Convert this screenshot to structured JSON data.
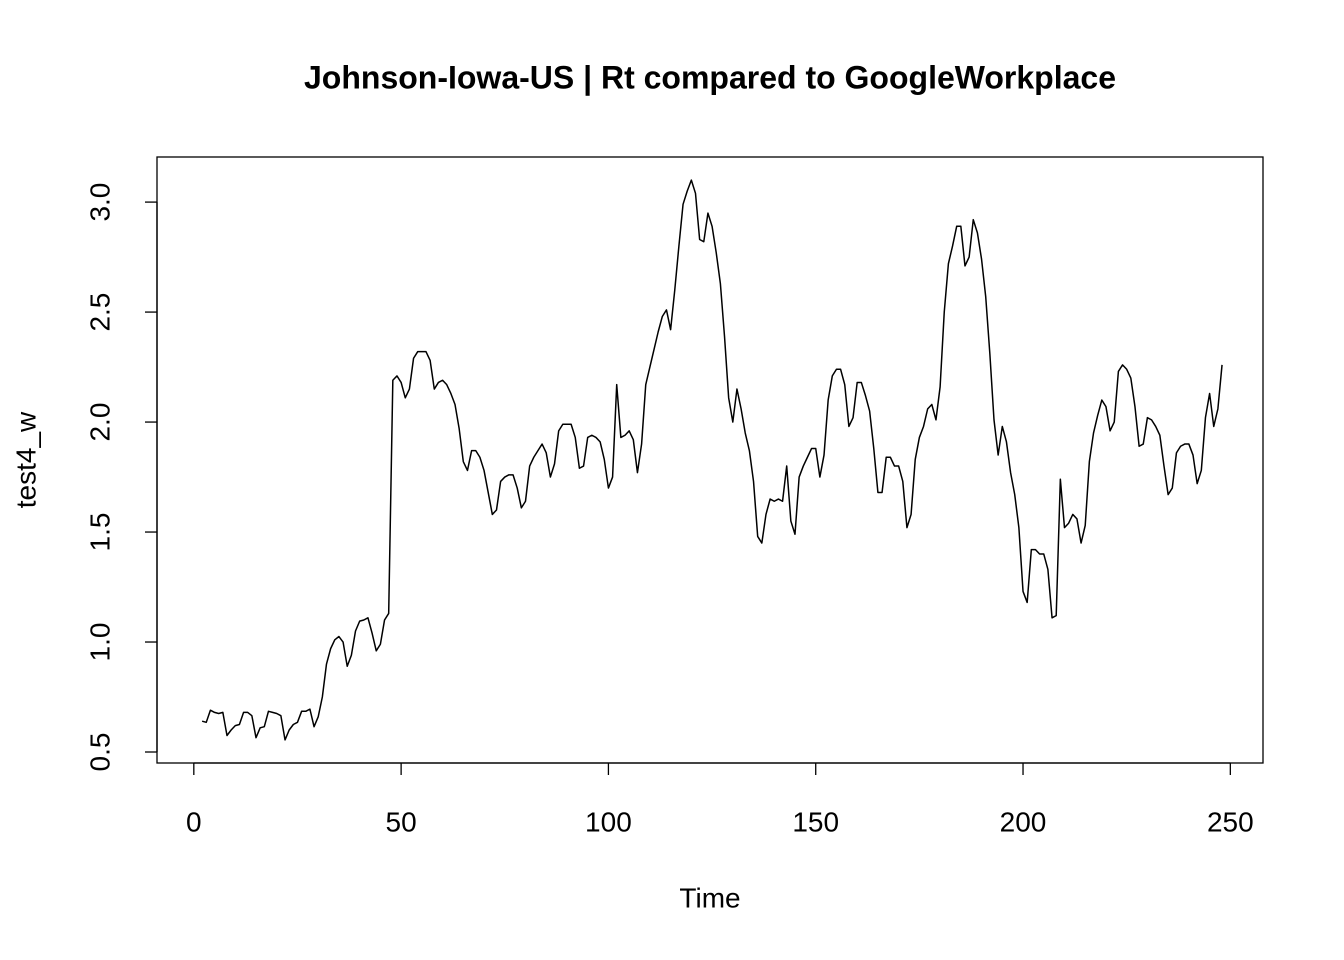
{
  "chart_data": {
    "type": "line",
    "title": "Johnson-Iowa-US | Rt compared to GoogleWorkplace",
    "xlabel": "Time",
    "ylabel": "test4_w",
    "color": "#000000",
    "x": [
      2,
      3,
      4,
      5,
      6,
      7,
      8,
      9,
      10,
      11,
      12,
      13,
      14,
      15,
      16,
      17,
      18,
      19,
      20,
      21,
      22,
      23,
      24,
      25,
      26,
      27,
      28,
      29,
      30,
      31,
      32,
      33,
      34,
      35,
      36,
      37,
      38,
      39,
      40,
      41,
      42,
      43,
      44,
      45,
      46,
      47,
      48,
      49,
      50,
      51,
      52,
      53,
      54,
      55,
      56,
      57,
      58,
      59,
      60,
      61,
      62,
      63,
      64,
      65,
      66,
      67,
      68,
      69,
      70,
      71,
      72,
      73,
      74,
      75,
      76,
      77,
      78,
      79,
      80,
      81,
      82,
      83,
      84,
      85,
      86,
      87,
      88,
      89,
      90,
      91,
      92,
      93,
      94,
      95,
      96,
      97,
      98,
      99,
      100,
      101,
      102,
      103,
      104,
      105,
      106,
      107,
      108,
      109,
      110,
      111,
      112,
      113,
      114,
      115,
      116,
      117,
      118,
      119,
      120,
      121,
      122,
      123,
      124,
      125,
      126,
      127,
      128,
      129,
      130,
      131,
      132,
      133,
      134,
      135,
      136,
      137,
      138,
      139,
      140,
      141,
      142,
      143,
      144,
      145,
      146,
      147,
      148,
      149,
      150,
      151,
      152,
      153,
      154,
      155,
      156,
      157,
      158,
      159,
      160,
      161,
      162,
      163,
      164,
      165,
      166,
      167,
      168,
      169,
      170,
      171,
      172,
      173,
      174,
      175,
      176,
      177,
      178,
      179,
      180,
      181,
      182,
      183,
      184,
      185,
      186,
      187,
      188,
      189,
      190,
      191,
      192,
      193,
      194,
      195,
      196,
      197,
      198,
      199,
      200,
      201,
      202,
      203,
      204,
      205,
      206,
      207,
      208,
      209,
      210,
      211,
      212,
      213,
      214,
      215,
      216,
      217,
      218,
      219,
      220,
      221,
      222,
      223,
      224,
      225,
      226,
      227,
      228,
      229,
      230,
      231,
      232,
      233,
      234,
      235,
      236,
      237,
      238,
      239,
      240,
      241,
      242,
      243,
      244,
      245,
      246,
      247,
      248
    ],
    "values": [
      0.64,
      0.635,
      0.69,
      0.68,
      0.675,
      0.68,
      0.575,
      0.6,
      0.62,
      0.625,
      0.68,
      0.68,
      0.665,
      0.565,
      0.61,
      0.615,
      0.685,
      0.68,
      0.675,
      0.665,
      0.555,
      0.6,
      0.625,
      0.635,
      0.685,
      0.685,
      0.695,
      0.615,
      0.66,
      0.75,
      0.9,
      0.97,
      1.01,
      1.025,
      1.0,
      0.89,
      0.94,
      1.05,
      1.095,
      1.1,
      1.11,
      1.04,
      0.96,
      0.99,
      1.1,
      1.13,
      2.19,
      2.21,
      2.18,
      2.11,
      2.15,
      2.29,
      2.32,
      2.32,
      2.32,
      2.28,
      2.15,
      2.18,
      2.19,
      2.17,
      2.13,
      2.08,
      1.97,
      1.82,
      1.78,
      1.87,
      1.87,
      1.84,
      1.78,
      1.68,
      1.58,
      1.6,
      1.73,
      1.75,
      1.76,
      1.76,
      1.7,
      1.61,
      1.64,
      1.8,
      1.84,
      1.87,
      1.9,
      1.86,
      1.75,
      1.81,
      1.96,
      1.99,
      1.99,
      1.99,
      1.93,
      1.79,
      1.8,
      1.93,
      1.94,
      1.93,
      1.91,
      1.83,
      1.7,
      1.75,
      2.17,
      1.93,
      1.94,
      1.96,
      1.92,
      1.77,
      1.9,
      2.17,
      2.25,
      2.33,
      2.41,
      2.48,
      2.51,
      2.42,
      2.6,
      2.8,
      2.99,
      3.05,
      3.1,
      3.04,
      2.83,
      2.82,
      2.95,
      2.89,
      2.77,
      2.63,
      2.39,
      2.11,
      2.0,
      2.15,
      2.06,
      1.95,
      1.87,
      1.73,
      1.48,
      1.45,
      1.58,
      1.65,
      1.64,
      1.65,
      1.64,
      1.8,
      1.55,
      1.49,
      1.75,
      1.8,
      1.84,
      1.88,
      1.88,
      1.75,
      1.85,
      2.1,
      2.21,
      2.24,
      2.24,
      2.17,
      1.98,
      2.02,
      2.18,
      2.18,
      2.12,
      2.05,
      1.88,
      1.68,
      1.68,
      1.84,
      1.84,
      1.8,
      1.8,
      1.73,
      1.52,
      1.58,
      1.83,
      1.93,
      1.98,
      2.06,
      2.08,
      2.01,
      2.16,
      2.5,
      2.72,
      2.8,
      2.89,
      2.89,
      2.71,
      2.75,
      2.92,
      2.86,
      2.74,
      2.57,
      2.31,
      2.01,
      1.85,
      1.98,
      1.91,
      1.77,
      1.67,
      1.52,
      1.23,
      1.18,
      1.42,
      1.42,
      1.4,
      1.4,
      1.33,
      1.11,
      1.12,
      1.74,
      1.52,
      1.54,
      1.58,
      1.56,
      1.45,
      1.53,
      1.82,
      1.95,
      2.03,
      2.1,
      2.07,
      1.96,
      2.0,
      2.23,
      2.26,
      2.24,
      2.2,
      2.07,
      1.89,
      1.9,
      2.02,
      2.01,
      1.98,
      1.94,
      1.8,
      1.67,
      1.7,
      1.86,
      1.89,
      1.9,
      1.9,
      1.85,
      1.72,
      1.78,
      2.02,
      2.13,
      1.98,
      2.06,
      2.26
    ],
    "xlim": [
      -8.88,
      257.88
    ],
    "ylim": [
      0.45,
      3.205
    ],
    "xticks": [
      0,
      50,
      100,
      150,
      200,
      250
    ],
    "yticks": [
      0.5,
      {
        "value": 1,
        "label": "1.0"
      },
      1.5,
      {
        "value": 2,
        "label": "2.0"
      },
      2.5,
      {
        "value": 3,
        "label": "3.0"
      }
    ]
  }
}
